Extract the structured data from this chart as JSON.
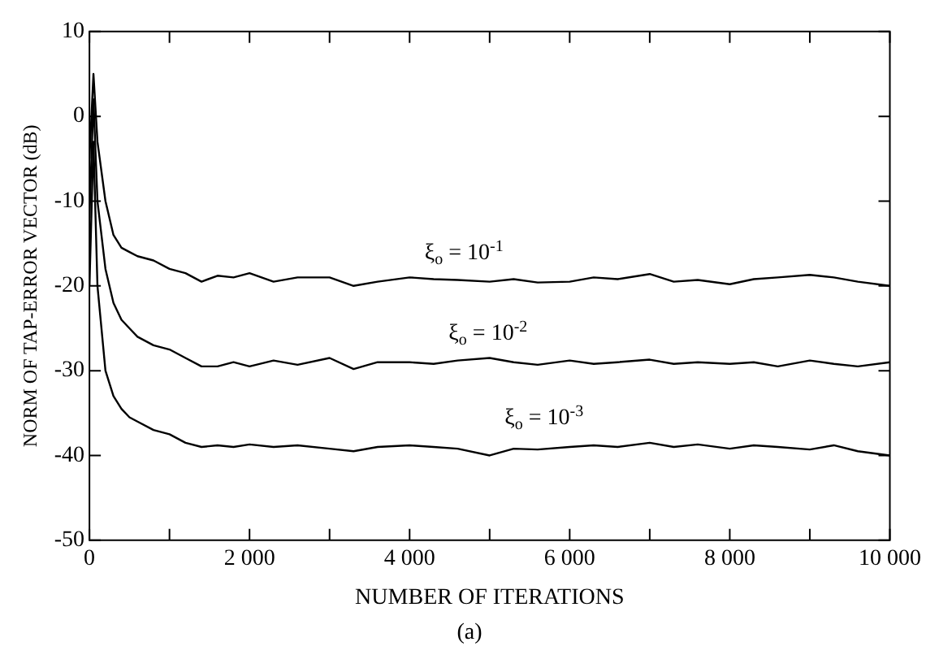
{
  "chart_data": {
    "type": "line",
    "xlabel": "NUMBER OF ITERATIONS",
    "ylabel": "NORM OF TAP-ERROR VECTOR (dB)",
    "x": [
      0,
      50,
      100,
      200,
      300,
      400,
      500,
      600,
      800,
      1000,
      1200,
      1400,
      1600,
      1800,
      2000,
      2300,
      2600,
      3000,
      3300,
      3600,
      4000,
      4300,
      4600,
      5000,
      5300,
      5600,
      6000,
      6300,
      6600,
      7000,
      7300,
      7600,
      8000,
      8300,
      8600,
      9000,
      9300,
      9600,
      10000
    ],
    "series": [
      {
        "name": "ξ$_{o}$ = 10$^{-1}$",
        "color": "#000000",
        "values": [
          -5,
          5,
          -3,
          -10,
          -14,
          -15.5,
          -16,
          -16.5,
          -17,
          -18,
          -18.5,
          -19.5,
          -18.8,
          -19,
          -18.5,
          -19.5,
          -19,
          -19,
          -20,
          -19.5,
          -19,
          -19.2,
          -19.3,
          -19.5,
          -19.2,
          -19.6,
          -19.5,
          -19,
          -19.2,
          -18.6,
          -19.5,
          -19.3,
          -19.8,
          -19.2,
          -19,
          -18.7,
          -19,
          -19.5,
          -20
        ]
      },
      {
        "name": "ξ$_{o}$ = 10$^{-2}$",
        "color": "#000000",
        "values": [
          -12,
          2,
          -10,
          -18,
          -22,
          -24,
          -25,
          -26,
          -27,
          -27.5,
          -28.5,
          -29.5,
          -29.5,
          -29,
          -29.5,
          -28.8,
          -29.3,
          -28.5,
          -29.8,
          -29,
          -29,
          -29.2,
          -28.8,
          -28.5,
          -29,
          -29.3,
          -28.8,
          -29.2,
          -29,
          -28.7,
          -29.2,
          -29,
          -29.2,
          -29,
          -29.5,
          -28.8,
          -29.2,
          -29.5,
          -29
        ]
      },
      {
        "name": "ξ$_{o}$ = 10$^{-3}$",
        "color": "#000000",
        "values": [
          -20,
          -3,
          -20,
          -30,
          -33,
          -34.5,
          -35.5,
          -36,
          -37,
          -37.5,
          -38.5,
          -39,
          -38.8,
          -39,
          -38.7,
          -39,
          -38.8,
          -39.2,
          -39.5,
          -39,
          -38.8,
          -39,
          -39.2,
          -40,
          -39.2,
          -39.3,
          -39,
          -38.8,
          -39,
          -38.5,
          -39,
          -38.7,
          -39.2,
          -38.8,
          -39,
          -39.3,
          -38.8,
          -39.5,
          -40
        ]
      }
    ],
    "xlim": [
      0,
      10000
    ],
    "xticks": [
      0,
      {
        "value": 1000,
        "label": null
      },
      {
        "value": 2000,
        "label": "2 000"
      },
      {
        "value": 3000,
        "label": null
      },
      {
        "value": 4000,
        "label": "4 000"
      },
      {
        "value": 5000,
        "label": null
      },
      {
        "value": 6000,
        "label": "6 000"
      },
      {
        "value": 7000,
        "label": null
      },
      {
        "value": 8000,
        "label": "8 000"
      },
      {
        "value": 9000,
        "label": null
      },
      {
        "value": 10000,
        "label": "10 000"
      }
    ],
    "ylim": [
      -50,
      10
    ],
    "yticks": [
      -50,
      -40,
      -30,
      -20,
      -10,
      0,
      10
    ],
    "grid": false,
    "legend": false,
    "marker": "none",
    "line_style": "solid",
    "annotations": [
      "(a)"
    ]
  }
}
